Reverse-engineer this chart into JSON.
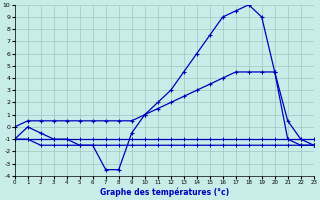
{
  "xlabel": "Graphe des températures (°c)",
  "background_color": "#c8ece8",
  "grid_color": "#9bbcba",
  "line_color": "#0000bb",
  "hours": [
    0,
    1,
    2,
    3,
    4,
    5,
    6,
    7,
    8,
    9,
    10,
    11,
    12,
    13,
    14,
    15,
    16,
    17,
    18,
    19,
    20,
    21,
    22,
    23
  ],
  "temp_instant": [
    -1,
    0,
    -0.5,
    -1,
    -1,
    -1.5,
    -1.5,
    -3.5,
    -3.5,
    -0.5,
    1,
    2,
    3,
    4.5,
    6,
    7.5,
    9,
    9.5,
    10,
    9,
    4.5,
    -1,
    -1.5,
    -1.5
  ],
  "temp_max": [
    0,
    0.5,
    0.5,
    0.5,
    0.5,
    0.5,
    0.5,
    0.5,
    0.5,
    0.5,
    1,
    1.5,
    2,
    2.5,
    3,
    3.5,
    4,
    4.5,
    4.5,
    4.5,
    4.5,
    0.5,
    -1,
    -1.5
  ],
  "temp_avg": [
    -1,
    -1,
    -1,
    -1,
    -1,
    -1,
    -1,
    -1,
    -1,
    -1,
    -1,
    -1,
    -1,
    -1,
    -1,
    -1,
    -1,
    -1,
    -1,
    -1,
    -1,
    -1,
    -1,
    -1
  ],
  "temp_min": [
    -1,
    -1,
    -1.5,
    -1.5,
    -1.5,
    -1.5,
    -1.5,
    -1.5,
    -1.5,
    -1.5,
    -1.5,
    -1.5,
    -1.5,
    -1.5,
    -1.5,
    -1.5,
    -1.5,
    -1.5,
    -1.5,
    -1.5,
    -1.5,
    -1.5,
    -1.5,
    -1.5
  ],
  "ylim": [
    -4,
    10
  ],
  "xlim": [
    0,
    23
  ],
  "yticks": [
    -4,
    -3,
    -2,
    -1,
    0,
    1,
    2,
    3,
    4,
    5,
    6,
    7,
    8,
    9,
    10
  ],
  "xticks": [
    0,
    1,
    2,
    3,
    4,
    5,
    6,
    7,
    8,
    9,
    10,
    11,
    12,
    13,
    14,
    15,
    16,
    17,
    18,
    19,
    20,
    21,
    22,
    23
  ]
}
